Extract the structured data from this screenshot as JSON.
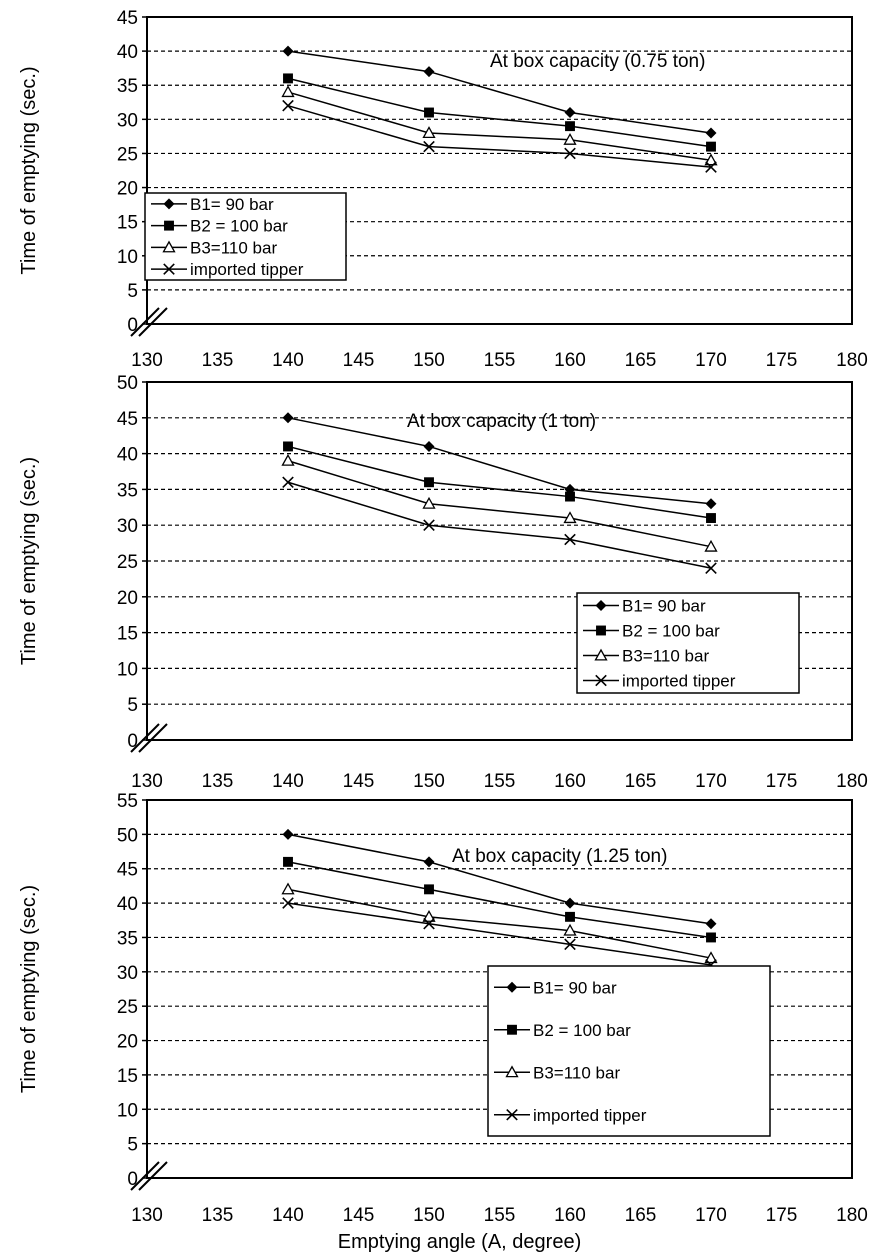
{
  "chart_data": [
    {
      "type": "line",
      "annotation": "At box capacity (0.75 ton)",
      "ylabel": "Time of emptying (sec.)",
      "xlabel": "",
      "xlim": [
        130,
        180
      ],
      "ylim": [
        0,
        45
      ],
      "xticks": [
        "130",
        "135",
        "140",
        "145",
        "150",
        "155",
        "160",
        "165",
        "170",
        "175",
        "180"
      ],
      "yticks": [
        "0",
        "5",
        "10",
        "15",
        "20",
        "25",
        "30",
        "35",
        "40",
        "45"
      ],
      "grid": "horizontal dashed",
      "legend_position": "left",
      "x": [
        140,
        150,
        160,
        170
      ],
      "series": [
        {
          "name": "B1= 90 bar",
          "marker": "diamond",
          "values": [
            40,
            37,
            31,
            28
          ]
        },
        {
          "name": "B2 = 100 bar",
          "marker": "square",
          "values": [
            36,
            31,
            29,
            26
          ]
        },
        {
          "name": "B3=110 bar",
          "marker": "triangle",
          "values": [
            34,
            28,
            27,
            24
          ]
        },
        {
          "name": "imported tipper",
          "marker": "x",
          "values": [
            32,
            26,
            25,
            23
          ]
        }
      ]
    },
    {
      "type": "line",
      "annotation": "At box capacity (1 ton)",
      "ylabel": "Time of emptying (sec.)",
      "xlabel": "",
      "xlim": [
        130,
        180
      ],
      "ylim": [
        0,
        50
      ],
      "xticks": [
        "130",
        "135",
        "140",
        "145",
        "150",
        "155",
        "160",
        "165",
        "170",
        "175",
        "180"
      ],
      "yticks": [
        "0",
        "5",
        "10",
        "15",
        "20",
        "25",
        "30",
        "35",
        "40",
        "45",
        "50"
      ],
      "grid": "horizontal dashed",
      "legend_position": "bottom-right",
      "x": [
        140,
        150,
        160,
        170
      ],
      "series": [
        {
          "name": "B1= 90 bar",
          "marker": "diamond",
          "values": [
            45,
            41,
            35,
            33
          ]
        },
        {
          "name": "B2 = 100 bar",
          "marker": "square",
          "values": [
            41,
            36,
            34,
            31
          ]
        },
        {
          "name": "B3=110 bar",
          "marker": "triangle",
          "values": [
            39,
            33,
            31,
            27
          ]
        },
        {
          "name": "imported tipper",
          "marker": "x",
          "values": [
            36,
            30,
            28,
            24
          ]
        }
      ]
    },
    {
      "type": "line",
      "annotation": "At box capacity  (1.25 ton)",
      "ylabel": "Time of emptying (sec.)",
      "xlabel": "Emptying angle (A, degree)",
      "xlim": [
        130,
        180
      ],
      "ylim": [
        0,
        55
      ],
      "xticks": [
        "130",
        "135",
        "140",
        "145",
        "150",
        "155",
        "160",
        "165",
        "170",
        "175",
        "180"
      ],
      "yticks": [
        "0",
        "5",
        "10",
        "15",
        "20",
        "25",
        "30",
        "35",
        "40",
        "45",
        "50",
        "55"
      ],
      "grid": "horizontal dashed",
      "legend_position": "bottom-right",
      "x": [
        140,
        150,
        160,
        170
      ],
      "series": [
        {
          "name": "B1= 90 bar",
          "marker": "diamond",
          "values": [
            50,
            46,
            40,
            37
          ]
        },
        {
          "name": "B2 = 100 bar",
          "marker": "square",
          "values": [
            46,
            42,
            38,
            35
          ]
        },
        {
          "name": "B3=110 bar",
          "marker": "triangle",
          "values": [
            42,
            38,
            36,
            32
          ]
        },
        {
          "name": "imported tipper",
          "marker": "x",
          "values": [
            40,
            37,
            34,
            31
          ]
        }
      ]
    }
  ]
}
